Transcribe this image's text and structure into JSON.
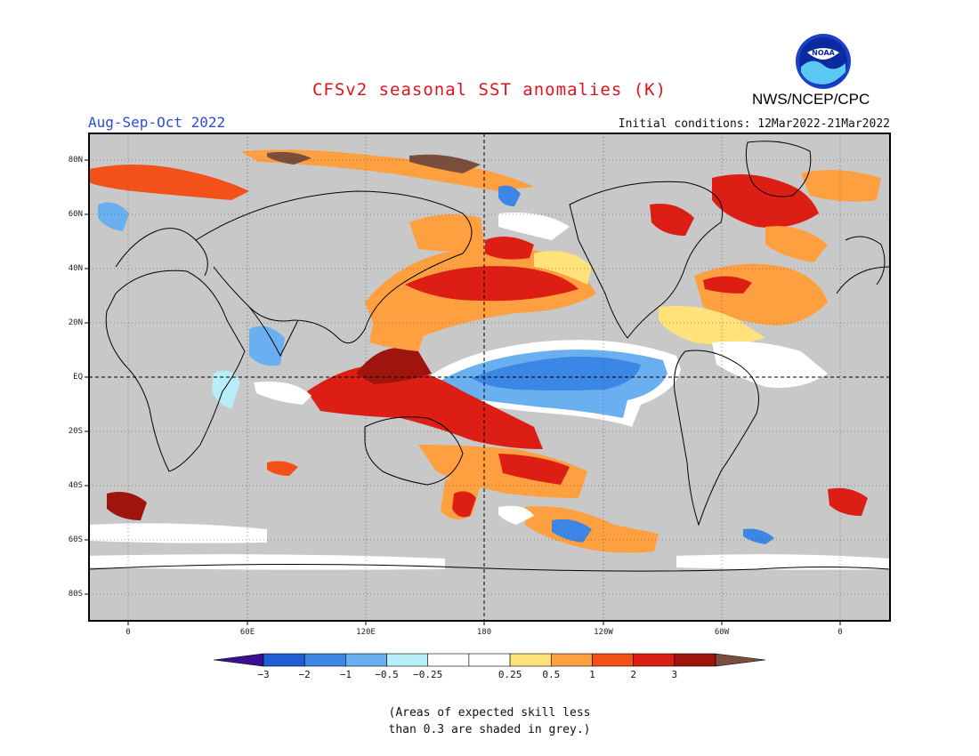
{
  "title": "CFSv2 seasonal SST anomalies (K)",
  "period": "Aug-Sep-Oct 2022",
  "initial_conditions": "Initial conditions: 12Mar2022-21Mar2022",
  "agency": "NWS/NCEP/CPC",
  "logo_text": "NOAA",
  "colors": {
    "title": "#e0141c",
    "period": "#2a4ed8",
    "land": "#c8c8c8",
    "ocean_neutral": "#ffffff"
  },
  "axes": {
    "lat_labels": [
      "80N",
      "60N",
      "40N",
      "20N",
      "EQ",
      "20S",
      "40S",
      "60S",
      "80S"
    ],
    "lon_labels": [
      "0",
      "60E",
      "120E",
      "180",
      "120W",
      "60W",
      "0"
    ]
  },
  "colorbar": {
    "colors": [
      "#3a1090",
      "#1f5fd2",
      "#3c86e6",
      "#6aaff0",
      "#b8eef8",
      "#ffffff",
      "#ffffff",
      "#ffe27a",
      "#ffa040",
      "#f4501a",
      "#dc1e14",
      "#a0140e",
      "#7a4e3c"
    ],
    "labels": [
      "−3",
      "−2",
      "−1",
      "−0.5",
      "−0.25",
      "0.25",
      "0.5",
      "1",
      "2",
      "3"
    ]
  },
  "note_lines": [
    "(Areas of expected skill less",
    "than 0.3 are shaded in grey.)"
  ]
}
